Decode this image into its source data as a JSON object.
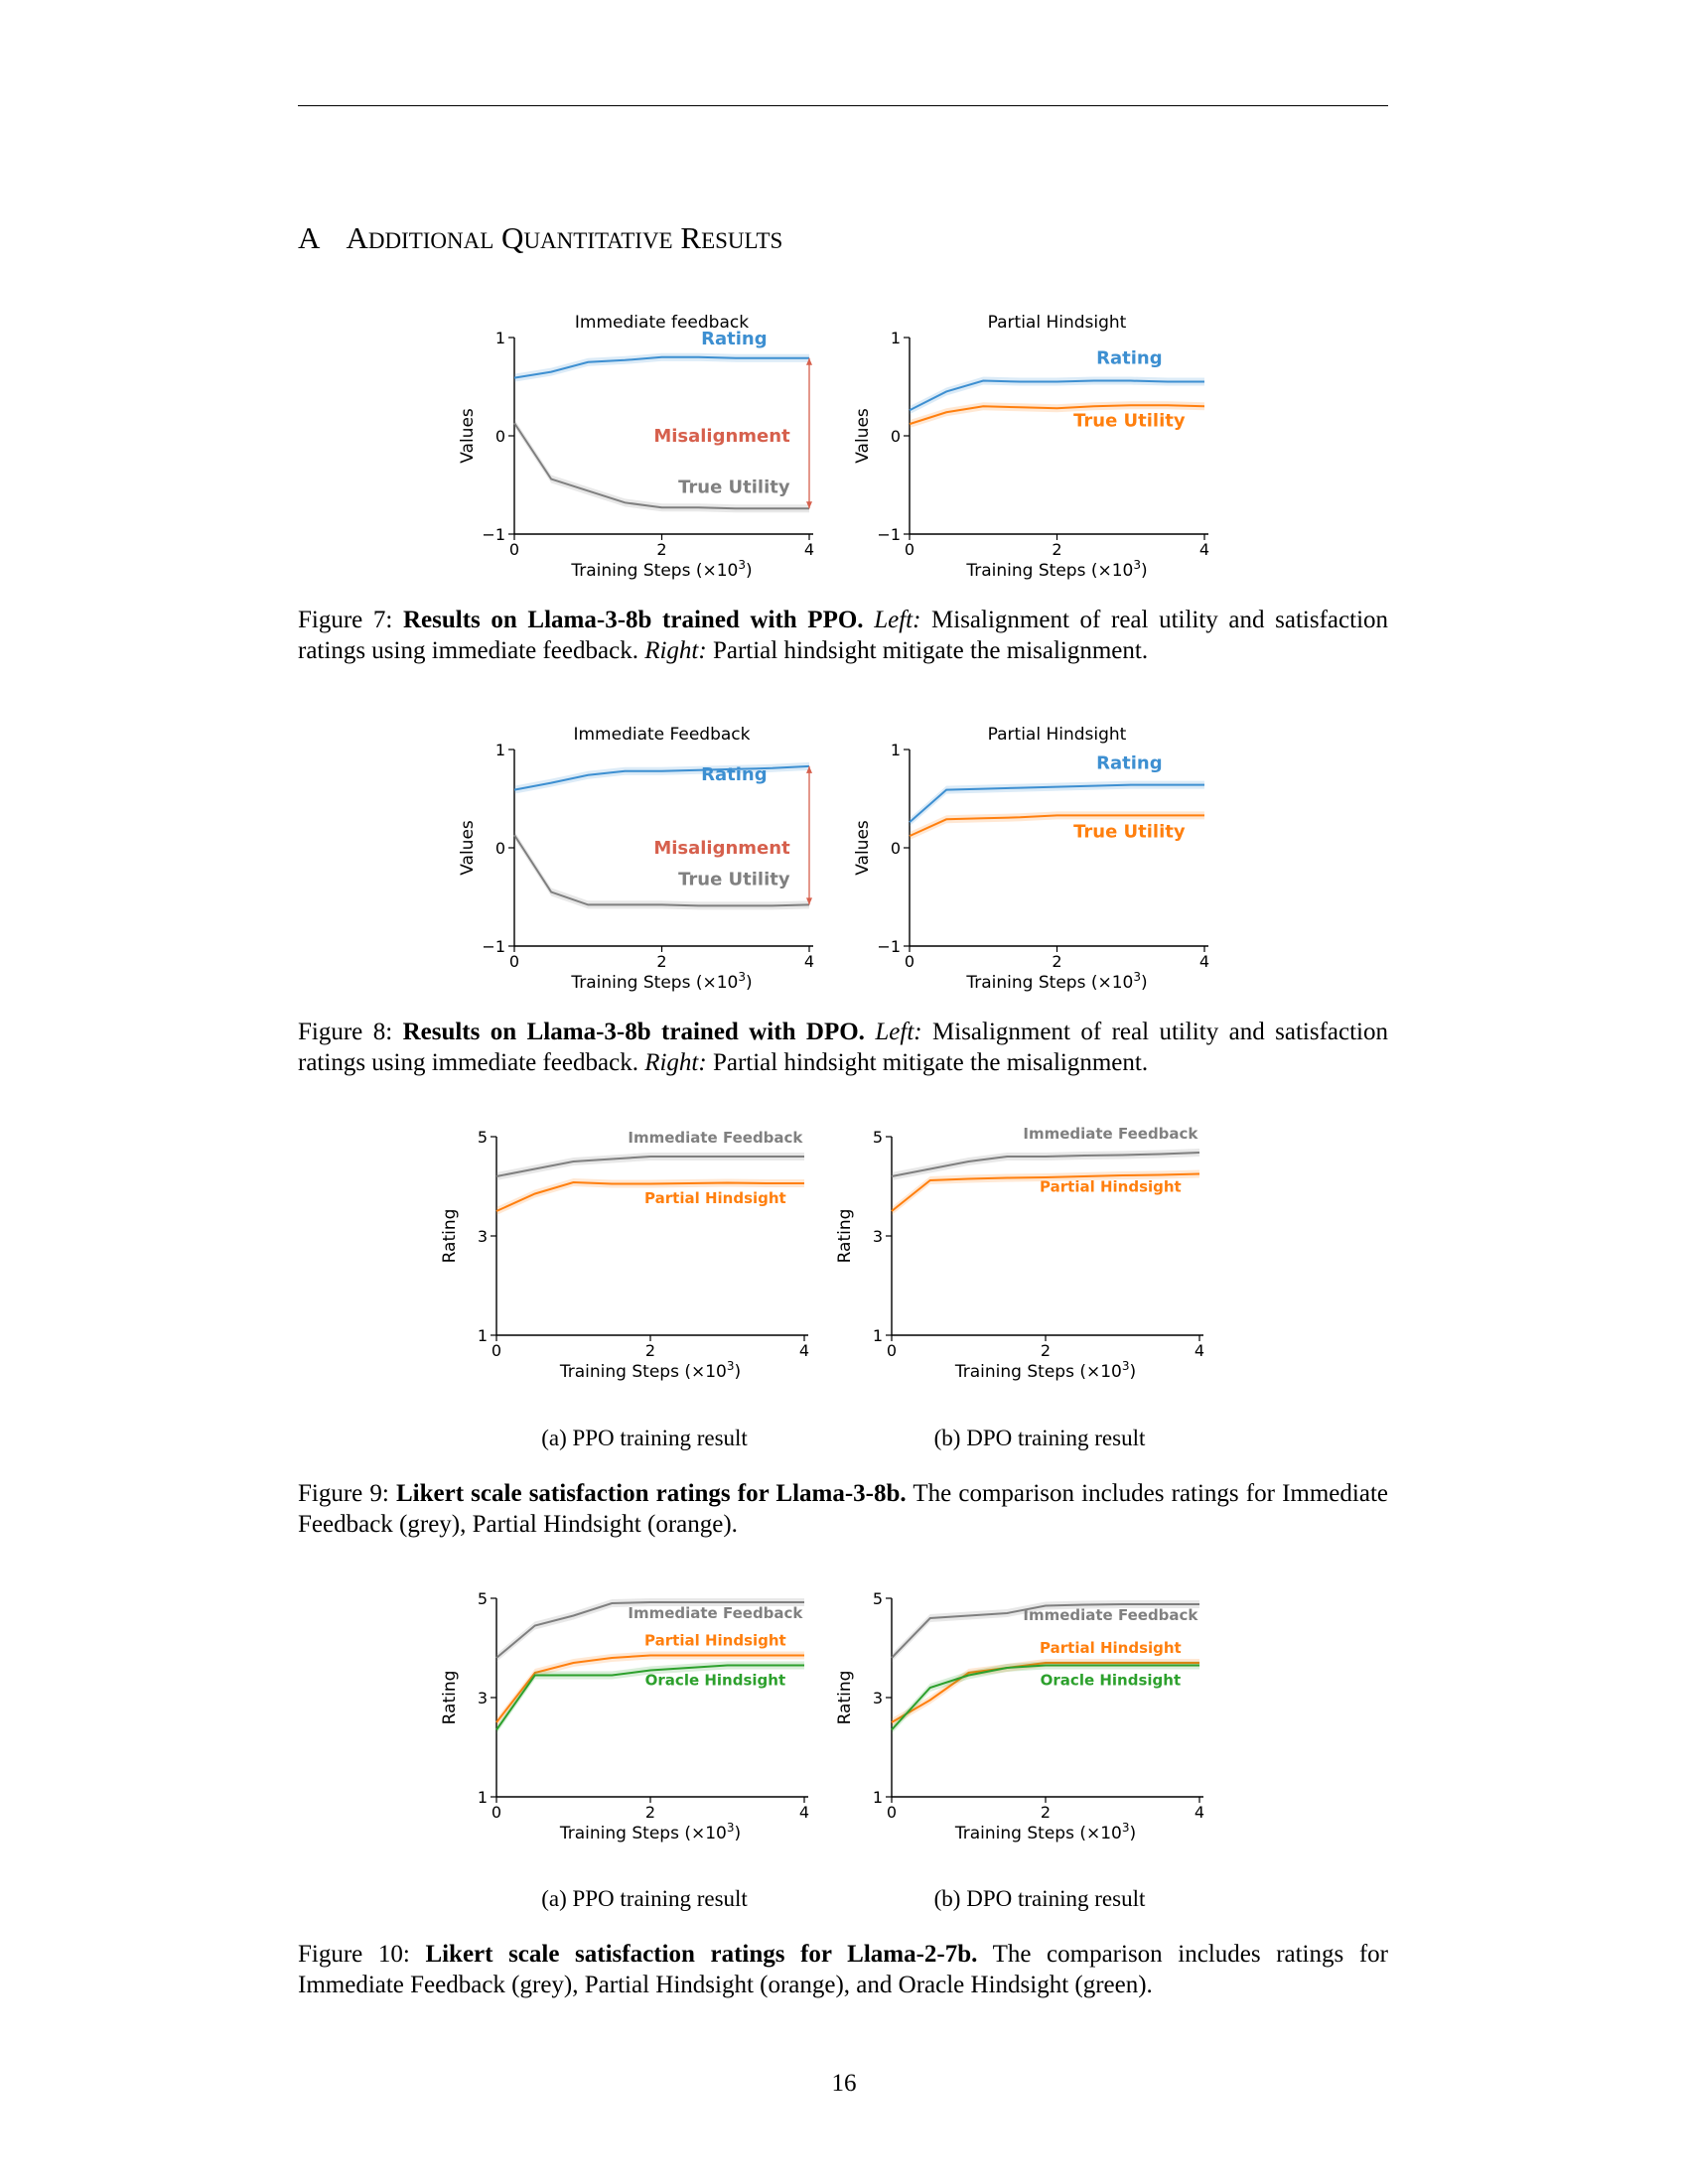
{
  "section": {
    "number": "A",
    "title_words": [
      {
        "initial": "A",
        "rest": "DDITIONAL"
      },
      {
        "initial": "Q",
        "rest": "UANTITATIVE"
      },
      {
        "initial": "R",
        "rest": "ESULTS"
      }
    ]
  },
  "colors": {
    "blue": "#3d8fd1",
    "orange": "#ff7f0e",
    "grey": "#7f7f7f",
    "green": "#2ca02c",
    "misalignment": "#d6604d",
    "dark_grey": "#555555"
  },
  "figures": [
    {
      "id": "fig7",
      "label": "Figure 7:",
      "bold": "Results on Llama-3-8b trained with PPO.",
      "parts": [
        {
          "style": "i",
          "text": "Left:"
        },
        {
          "style": "n",
          "text": " Misalignment of real utility and satisfaction ratings using immediate feedback. "
        },
        {
          "style": "i",
          "text": "Right:"
        },
        {
          "style": "n",
          "text": " Partial hindsight mitigate the misalignment."
        }
      ]
    },
    {
      "id": "fig8",
      "label": "Figure 8:",
      "bold": "Results on Llama-3-8b trained with DPO.",
      "parts": [
        {
          "style": "i",
          "text": "Left:"
        },
        {
          "style": "n",
          "text": " Misalignment of real utility and satisfaction ratings using immediate feedback. "
        },
        {
          "style": "i",
          "text": "Right:"
        },
        {
          "style": "n",
          "text": " Partial hindsight mitigate the misalignment."
        }
      ]
    },
    {
      "id": "fig9",
      "label": "Figure 9:",
      "bold": "Likert scale satisfaction ratings for Llama-3-8b.",
      "parts": [
        {
          "style": "n",
          "text": " The comparison includes ratings for Immediate Feedback (grey), Partial Hindsight (orange)."
        }
      ],
      "subcaptions": [
        "(a) PPO training result",
        "(b) DPO training result"
      ]
    },
    {
      "id": "fig10",
      "label": "Figure 10:",
      "bold": "Likert scale satisfaction ratings for Llama-2-7b.",
      "parts": [
        {
          "style": "n",
          "text": " The comparison includes ratings for Immediate Feedback (grey), Partial Hindsight (orange), and Oracle Hindsight (green)."
        }
      ],
      "subcaptions": [
        "(a) PPO training result",
        "(b) DPO training result"
      ]
    }
  ],
  "chart_data": [
    {
      "figure": "fig7",
      "panel": "left",
      "type": "line",
      "title": "Immediate feedback",
      "xlabel": "Training Steps (×10³)",
      "ylabel": "Values",
      "xlim": [
        0,
        4
      ],
      "ylim": [
        -1,
        1
      ],
      "xticks": [
        0,
        2,
        4
      ],
      "yticks": [
        -1,
        0,
        1
      ],
      "series": [
        {
          "name": "Rating",
          "color": "blue",
          "x": [
            0,
            0.5,
            1,
            1.5,
            2,
            2.5,
            3,
            3.5,
            4
          ],
          "y": [
            0.59,
            0.65,
            0.75,
            0.77,
            0.8,
            0.8,
            0.79,
            0.79,
            0.79
          ]
        },
        {
          "name": "True Utility",
          "color": "grey",
          "x": [
            0,
            0.5,
            1,
            1.5,
            2,
            2.5,
            3,
            3.5,
            4
          ],
          "y": [
            0.13,
            -0.44,
            -0.56,
            -0.68,
            -0.73,
            -0.73,
            -0.74,
            -0.74,
            -0.74
          ]
        }
      ],
      "annotation": {
        "text": "Misalignment",
        "color": "misalignment",
        "x": 4,
        "y_from": -0.74,
        "y_to": 0.79
      }
    },
    {
      "figure": "fig7",
      "panel": "right",
      "type": "line",
      "title": "Partial Hindsight",
      "xlabel": "Training Steps (×10³)",
      "ylabel": "Values",
      "xlim": [
        0,
        4
      ],
      "ylim": [
        -1,
        1
      ],
      "xticks": [
        0,
        2,
        4
      ],
      "yticks": [
        -1,
        0,
        1
      ],
      "series": [
        {
          "name": "Rating",
          "color": "blue",
          "x": [
            0,
            0.5,
            1,
            1.5,
            2,
            2.5,
            3,
            3.5,
            4
          ],
          "y": [
            0.26,
            0.45,
            0.56,
            0.55,
            0.55,
            0.56,
            0.56,
            0.55,
            0.55
          ]
        },
        {
          "name": "True Utility",
          "color": "orange",
          "x": [
            0,
            0.5,
            1,
            1.5,
            2,
            2.5,
            3,
            3.5,
            4
          ],
          "y": [
            0.12,
            0.24,
            0.3,
            0.29,
            0.28,
            0.3,
            0.31,
            0.31,
            0.3
          ]
        }
      ]
    },
    {
      "figure": "fig8",
      "panel": "left",
      "type": "line",
      "title": "Immediate Feedback",
      "xlabel": "Training Steps (×10³)",
      "ylabel": "Values",
      "xlim": [
        0,
        4
      ],
      "ylim": [
        -1,
        1
      ],
      "xticks": [
        0,
        2,
        4
      ],
      "yticks": [
        -1,
        0,
        1
      ],
      "series": [
        {
          "name": "Rating",
          "color": "blue",
          "x": [
            0,
            0.5,
            1,
            1.5,
            2,
            2.5,
            3,
            3.5,
            4
          ],
          "y": [
            0.59,
            0.66,
            0.74,
            0.78,
            0.78,
            0.79,
            0.8,
            0.81,
            0.83
          ]
        },
        {
          "name": "True Utility",
          "color": "grey",
          "x": [
            0,
            0.5,
            1,
            1.5,
            2,
            2.5,
            3,
            3.5,
            4
          ],
          "y": [
            0.13,
            -0.45,
            -0.58,
            -0.58,
            -0.58,
            -0.59,
            -0.59,
            -0.59,
            -0.58
          ]
        }
      ],
      "annotation": {
        "text": "Misalignment",
        "color": "misalignment",
        "x": 4,
        "y_from": -0.58,
        "y_to": 0.83
      }
    },
    {
      "figure": "fig8",
      "panel": "right",
      "type": "line",
      "title": "Partial Hindsight",
      "xlabel": "Training Steps (×10³)",
      "ylabel": "Values",
      "xlim": [
        0,
        4
      ],
      "ylim": [
        -1,
        1
      ],
      "xticks": [
        0,
        2,
        4
      ],
      "yticks": [
        -1,
        0,
        1
      ],
      "series": [
        {
          "name": "Rating",
          "color": "blue",
          "x": [
            0,
            0.5,
            1,
            1.5,
            2,
            2.5,
            3,
            3.5,
            4
          ],
          "y": [
            0.26,
            0.59,
            0.6,
            0.61,
            0.62,
            0.63,
            0.64,
            0.64,
            0.64
          ]
        },
        {
          "name": "True Utility",
          "color": "orange",
          "x": [
            0,
            0.5,
            1,
            1.5,
            2,
            2.5,
            3,
            3.5,
            4
          ],
          "y": [
            0.12,
            0.29,
            0.3,
            0.31,
            0.33,
            0.33,
            0.33,
            0.33,
            0.33
          ]
        }
      ]
    },
    {
      "figure": "fig9",
      "panel": "a",
      "type": "line",
      "xlabel": "Training Steps (×10³)",
      "ylabel": "Rating",
      "xlim": [
        0,
        4
      ],
      "ylim": [
        1,
        5
      ],
      "xticks": [
        0,
        2,
        4
      ],
      "yticks": [
        1,
        3,
        5
      ],
      "series": [
        {
          "name": "Immediate Feedback",
          "color": "grey",
          "x": [
            0,
            0.5,
            1,
            1.5,
            2,
            2.5,
            3,
            3.5,
            4
          ],
          "y": [
            4.2,
            4.35,
            4.5,
            4.55,
            4.6,
            4.6,
            4.6,
            4.6,
            4.6
          ]
        },
        {
          "name": "Partial Hindsight",
          "color": "orange",
          "x": [
            0,
            0.5,
            1,
            1.5,
            2,
            2.5,
            3,
            3.5,
            4
          ],
          "y": [
            3.5,
            3.85,
            4.08,
            4.05,
            4.05,
            4.06,
            4.07,
            4.06,
            4.06
          ]
        }
      ]
    },
    {
      "figure": "fig9",
      "panel": "b",
      "type": "line",
      "xlabel": "Training Steps (×10³)",
      "ylabel": "Rating",
      "xlim": [
        0,
        4
      ],
      "ylim": [
        1,
        5
      ],
      "xticks": [
        0,
        2,
        4
      ],
      "yticks": [
        1,
        3,
        5
      ],
      "series": [
        {
          "name": "Immediate Feedback",
          "color": "grey",
          "x": [
            0,
            0.5,
            1,
            1.5,
            2,
            2.5,
            3,
            3.5,
            4
          ],
          "y": [
            4.2,
            4.35,
            4.5,
            4.6,
            4.6,
            4.62,
            4.63,
            4.65,
            4.68
          ]
        },
        {
          "name": "Partial Hindsight",
          "color": "orange",
          "x": [
            0,
            0.5,
            1,
            1.5,
            2,
            2.5,
            3,
            3.5,
            4
          ],
          "y": [
            3.5,
            4.12,
            4.15,
            4.17,
            4.18,
            4.2,
            4.22,
            4.23,
            4.25
          ]
        }
      ]
    },
    {
      "figure": "fig10",
      "panel": "a",
      "type": "line",
      "xlabel": "Training Steps (×10³)",
      "ylabel": "Rating",
      "xlim": [
        0,
        4
      ],
      "ylim": [
        1,
        5
      ],
      "xticks": [
        0,
        2,
        4
      ],
      "yticks": [
        1,
        3,
        5
      ],
      "series": [
        {
          "name": "Immediate Feedback",
          "color": "grey",
          "x": [
            0,
            0.5,
            1,
            1.5,
            2,
            2.5,
            3,
            3.5,
            4
          ],
          "y": [
            3.8,
            4.45,
            4.65,
            4.9,
            4.92,
            4.92,
            4.92,
            4.92,
            4.92
          ]
        },
        {
          "name": "Partial Hindsight",
          "color": "orange",
          "x": [
            0,
            0.5,
            1,
            1.5,
            2,
            2.5,
            3,
            3.5,
            4
          ],
          "y": [
            2.5,
            3.5,
            3.7,
            3.8,
            3.85,
            3.85,
            3.85,
            3.85,
            3.85
          ]
        },
        {
          "name": "Oracle Hindsight",
          "color": "green",
          "x": [
            0,
            0.5,
            1,
            1.5,
            2,
            2.5,
            3,
            3.5,
            4
          ],
          "y": [
            2.35,
            3.45,
            3.45,
            3.45,
            3.55,
            3.6,
            3.65,
            3.65,
            3.65
          ]
        }
      ]
    },
    {
      "figure": "fig10",
      "panel": "b",
      "type": "line",
      "xlabel": "Training Steps (×10³)",
      "ylabel": "Rating",
      "xlim": [
        0,
        4
      ],
      "ylim": [
        1,
        5
      ],
      "xticks": [
        0,
        2,
        4
      ],
      "yticks": [
        1,
        3,
        5
      ],
      "series": [
        {
          "name": "Immediate Feedback",
          "color": "grey",
          "x": [
            0,
            0.5,
            1,
            1.5,
            2,
            2.5,
            3,
            3.5,
            4
          ],
          "y": [
            3.8,
            4.6,
            4.65,
            4.7,
            4.85,
            4.87,
            4.88,
            4.88,
            4.88
          ]
        },
        {
          "name": "Partial Hindsight",
          "color": "orange",
          "x": [
            0,
            0.5,
            1,
            1.5,
            2,
            2.5,
            3,
            3.5,
            4
          ],
          "y": [
            2.5,
            2.95,
            3.5,
            3.6,
            3.7,
            3.7,
            3.7,
            3.7,
            3.7
          ]
        },
        {
          "name": "Oracle Hindsight",
          "color": "green",
          "x": [
            0,
            0.5,
            1,
            1.5,
            2,
            2.5,
            3,
            3.5,
            4
          ],
          "y": [
            2.35,
            3.2,
            3.45,
            3.6,
            3.65,
            3.65,
            3.65,
            3.65,
            3.65
          ]
        }
      ]
    }
  ],
  "page_number": "16"
}
